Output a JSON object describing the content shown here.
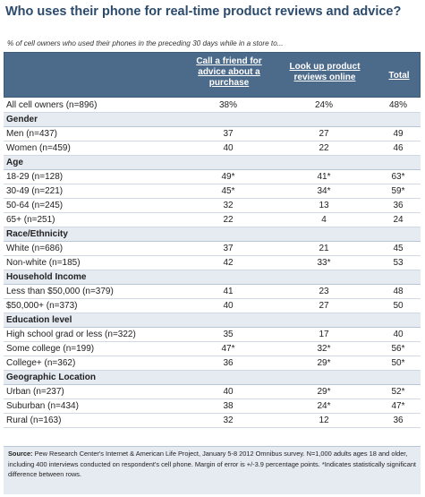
{
  "title": "Who uses their phone for real-time product reviews and advice?",
  "subtitle": "% of cell owners who used their phones in the preceding 30 days while in a store to...",
  "headers": {
    "col1": "Call a friend for advice about a purchase",
    "col2": "Look up product reviews online",
    "col3": "Total"
  },
  "rows": [
    {
      "label": "All cell owners (n=896)",
      "v1": "38%",
      "v2": "24%",
      "v3": "48%"
    },
    {
      "label": "Gender",
      "section": true
    },
    {
      "label": "Men (n=437)",
      "v1": "37",
      "v2": "27",
      "v3": "49"
    },
    {
      "label": "Women (n=459)",
      "v1": "40",
      "v2": "22",
      "v3": "46"
    },
    {
      "label": "Age",
      "section": true
    },
    {
      "label": "18-29 (n=128)",
      "v1": "49*",
      "v2": "41*",
      "v3": "63*"
    },
    {
      "label": "30-49 (n=221)",
      "v1": "45*",
      "v2": "34*",
      "v3": "59*"
    },
    {
      "label": "50-64 (n=245)",
      "v1": "32",
      "v2": "13",
      "v3": "36"
    },
    {
      "label": "65+ (n=251)",
      "v1": "22",
      "v2": "4",
      "v3": "24"
    },
    {
      "label": "Race/Ethnicity",
      "section": true
    },
    {
      "label": "White (n=686)",
      "v1": "37",
      "v2": "21",
      "v3": "45"
    },
    {
      "label": "Non-white (n=185)",
      "v1": "42",
      "v2": "33*",
      "v3": "53"
    },
    {
      "label": "Household Income",
      "section": true
    },
    {
      "label": "Less than $50,000 (n=379)",
      "v1": "41",
      "v2": "23",
      "v3": "48"
    },
    {
      "label": "$50,000+ (n=373)",
      "v1": "40",
      "v2": "27",
      "v3": "50"
    },
    {
      "label": "Education level",
      "section": true
    },
    {
      "label": "High school grad or less (n=322)",
      "v1": "35",
      "v2": "17",
      "v3": "40"
    },
    {
      "label": "Some college (n=199)",
      "v1": "47*",
      "v2": "32*",
      "v3": "56*"
    },
    {
      "label": "College+ (n=362)",
      "v1": "36",
      "v2": "29*",
      "v3": "50*"
    },
    {
      "label": "Geographic Location",
      "section": true
    },
    {
      "label": "Urban (n=237)",
      "v1": "40",
      "v2": "29*",
      "v3": "52*"
    },
    {
      "label": "Suburban (n=434)",
      "v1": "38",
      "v2": "24*",
      "v3": "47*"
    },
    {
      "label": "Rural (n=163)",
      "v1": "32",
      "v2": "12",
      "v3": "36"
    }
  ],
  "source": {
    "label": "Source:",
    "text": "Pew Research Center's Internet & American Life Project, January 5-8 2012 Omnibus survey. N=1,000 adults ages 18 and older, including 400 interviews conducted on respondent's cell phone. Margin of error is +/-3.9 percentage points. *Indicates statistically significant difference between rows."
  }
}
